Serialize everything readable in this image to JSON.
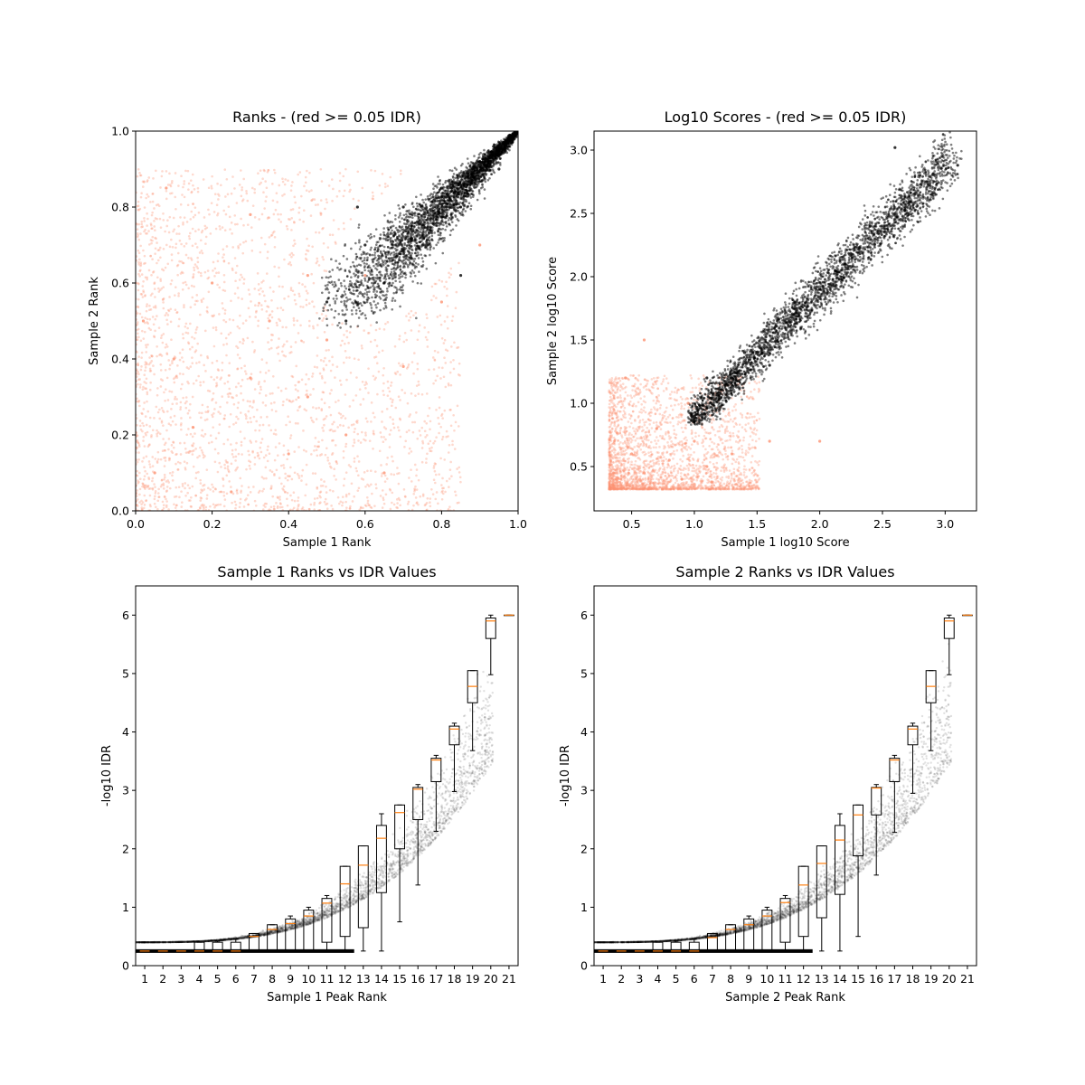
{
  "chart_data": [
    {
      "id": "ranks",
      "type": "scatter",
      "title": "Ranks - (red >= 0.05 IDR)",
      "xlabel": "Sample 1 Rank",
      "ylabel": "Sample 2 Rank",
      "xlim": [
        0.0,
        1.0
      ],
      "ylim": [
        0.0,
        1.0
      ],
      "xticks": [
        0.0,
        0.2,
        0.4,
        0.6,
        0.8,
        1.0
      ],
      "yticks": [
        0.0,
        0.2,
        0.4,
        0.6,
        0.8,
        1.0
      ],
      "xtick_labels": [
        "0.0",
        "0.2",
        "0.4",
        "0.6",
        "0.8",
        "1.0"
      ],
      "ytick_labels": [
        "0.0",
        "0.2",
        "0.4",
        "0.6",
        "0.8",
        "1.0"
      ],
      "series": [
        {
          "color": "#fc9272",
          "points": [
            [
              0.05,
              0.1
            ],
            [
              0.1,
              0.4
            ],
            [
              0.15,
              0.22
            ],
            [
              0.2,
              0.6
            ],
            [
              0.25,
              0.05
            ],
            [
              0.3,
              0.35
            ],
            [
              0.35,
              0.5
            ],
            [
              0.4,
              0.15
            ],
            [
              0.45,
              0.3
            ],
            [
              0.5,
              0.45
            ],
            [
              0.55,
              0.2
            ],
            [
              0.6,
              0.62
            ],
            [
              0.65,
              0.1
            ],
            [
              0.7,
              0.38
            ],
            [
              0.8,
              0.55
            ],
            [
              0.9,
              0.7
            ],
            [
              0.08,
              0.85
            ],
            [
              0.3,
              0.78
            ],
            [
              0.45,
              0.62
            ],
            [
              0.02,
              0.5
            ]
          ]
        },
        {
          "color": "#000000",
          "points": [
            [
              0.5,
              0.55
            ],
            [
              0.55,
              0.5
            ],
            [
              0.6,
              0.7
            ],
            [
              0.65,
              0.6
            ],
            [
              0.7,
              0.8
            ],
            [
              0.75,
              0.7
            ],
            [
              0.8,
              0.85
            ],
            [
              0.85,
              0.8
            ],
            [
              0.9,
              0.92
            ],
            [
              0.95,
              0.9
            ],
            [
              0.97,
              0.97
            ],
            [
              1.0,
              1.0
            ],
            [
              0.58,
              0.8
            ],
            [
              0.85,
              0.62
            ]
          ]
        }
      ]
    },
    {
      "id": "scores",
      "type": "scatter",
      "title": "Log10 Scores - (red >= 0.05 IDR)",
      "xlabel": "Sample 1 log10 Score",
      "ylabel": "Sample 2 log10 Score",
      "xlim": [
        0.2,
        3.25
      ],
      "ylim": [
        0.15,
        3.15
      ],
      "xticks": [
        0.5,
        1.0,
        1.5,
        2.0,
        2.5,
        3.0
      ],
      "yticks": [
        0.5,
        1.0,
        1.5,
        2.0,
        2.5,
        3.0
      ],
      "xtick_labels": [
        "0.5",
        "1.0",
        "1.5",
        "2.0",
        "2.5",
        "3.0"
      ],
      "ytick_labels": [
        "0.5",
        "1.0",
        "1.5",
        "2.0",
        "2.5",
        "3.0"
      ],
      "series": [
        {
          "color": "#fc9272",
          "points": [
            [
              0.35,
              0.35
            ],
            [
              0.5,
              0.6
            ],
            [
              0.6,
              0.45
            ],
            [
              0.7,
              0.8
            ],
            [
              0.8,
              0.55
            ],
            [
              0.9,
              0.4
            ],
            [
              1.0,
              0.7
            ],
            [
              1.1,
              0.5
            ],
            [
              1.3,
              0.6
            ],
            [
              1.6,
              0.7
            ],
            [
              0.45,
              1.2
            ],
            [
              0.6,
              1.5
            ],
            [
              0.95,
              1.0
            ],
            [
              2.0,
              0.7
            ]
          ]
        },
        {
          "color": "#000000",
          "points": [
            [
              1.0,
              0.85
            ],
            [
              1.1,
              1.2
            ],
            [
              1.2,
              0.95
            ],
            [
              1.4,
              1.4
            ],
            [
              1.6,
              1.3
            ],
            [
              1.8,
              1.8
            ],
            [
              2.0,
              1.9
            ],
            [
              2.2,
              2.1
            ],
            [
              2.4,
              2.4
            ],
            [
              2.6,
              2.5
            ],
            [
              2.8,
              2.8
            ],
            [
              3.1,
              2.88
            ],
            [
              2.6,
              3.02
            ]
          ]
        }
      ]
    },
    {
      "id": "s1idr",
      "type": "box",
      "title": "Sample 1 Ranks vs IDR Values",
      "xlabel": "Sample 1 Peak Rank",
      "ylabel": "-log10 IDR",
      "xlim": [
        0.0,
        21.0
      ],
      "ylim": [
        0.0,
        6.5
      ],
      "xtick_labels": [
        "1",
        "2",
        "3",
        "4",
        "5",
        "6",
        "7",
        "8",
        "9",
        "10",
        "11",
        "12",
        "13",
        "14",
        "15",
        "16",
        "17",
        "18",
        "19",
        "20",
        "21"
      ],
      "ytick_labels": [
        "0",
        "1",
        "2",
        "3",
        "4",
        "5",
        "6"
      ],
      "boxes": [
        {
          "pos": 1,
          "q1": 0.25,
          "median": 0.25,
          "q3": 0.25,
          "whislo": 0.25,
          "whishi": 0.25
        },
        {
          "pos": 2,
          "q1": 0.25,
          "median": 0.25,
          "q3": 0.25,
          "whislo": 0.25,
          "whishi": 0.25
        },
        {
          "pos": 3,
          "q1": 0.25,
          "median": 0.25,
          "q3": 0.25,
          "whislo": 0.25,
          "whishi": 0.25
        },
        {
          "pos": 4,
          "q1": 0.25,
          "median": 0.25,
          "q3": 0.4,
          "whislo": 0.25,
          "whishi": 0.4
        },
        {
          "pos": 5,
          "q1": 0.25,
          "median": 0.25,
          "q3": 0.4,
          "whislo": 0.25,
          "whishi": 0.42
        },
        {
          "pos": 6,
          "q1": 0.25,
          "median": 0.25,
          "q3": 0.4,
          "whislo": 0.25,
          "whishi": 0.45
        },
        {
          "pos": 7,
          "q1": 0.25,
          "median": 0.5,
          "q3": 0.55,
          "whislo": 0.25,
          "whishi": 0.55
        },
        {
          "pos": 8,
          "q1": 0.25,
          "median": 0.62,
          "q3": 0.7,
          "whislo": 0.25,
          "whishi": 0.7
        },
        {
          "pos": 9,
          "q1": 0.25,
          "median": 0.72,
          "q3": 0.8,
          "whislo": 0.25,
          "whishi": 0.85
        },
        {
          "pos": 10,
          "q1": 0.25,
          "median": 0.85,
          "q3": 0.95,
          "whislo": 0.25,
          "whishi": 1.0
        },
        {
          "pos": 11,
          "q1": 0.4,
          "median": 1.07,
          "q3": 1.15,
          "whislo": 0.25,
          "whishi": 1.2
        },
        {
          "pos": 12,
          "q1": 0.5,
          "median": 1.4,
          "q3": 1.7,
          "whislo": 0.25,
          "whishi": 1.7
        },
        {
          "pos": 13,
          "q1": 0.65,
          "median": 1.72,
          "q3": 2.05,
          "whislo": 0.25,
          "whishi": 2.05
        },
        {
          "pos": 14,
          "q1": 1.25,
          "median": 2.18,
          "q3": 2.4,
          "whislo": 0.25,
          "whishi": 2.6
        },
        {
          "pos": 15,
          "q1": 2.0,
          "median": 2.62,
          "q3": 2.75,
          "whislo": 0.75,
          "whishi": 2.75
        },
        {
          "pos": 16,
          "q1": 2.5,
          "median": 3.02,
          "q3": 3.05,
          "whislo": 1.38,
          "whishi": 3.1
        },
        {
          "pos": 17,
          "q1": 3.15,
          "median": 3.52,
          "q3": 3.55,
          "whislo": 2.3,
          "whishi": 3.6
        },
        {
          "pos": 18,
          "q1": 3.78,
          "median": 4.05,
          "q3": 4.1,
          "whislo": 2.98,
          "whishi": 4.15
        },
        {
          "pos": 19,
          "q1": 4.5,
          "median": 4.78,
          "q3": 5.05,
          "whislo": 3.68,
          "whishi": 5.05
        },
        {
          "pos": 20,
          "q1": 5.6,
          "median": 5.9,
          "q3": 5.95,
          "whislo": 4.98,
          "whishi": 6.0
        },
        {
          "pos": 21,
          "q1": 6.0,
          "median": 6.0,
          "q3": 6.0,
          "whislo": 6.0,
          "whishi": 6.0
        }
      ]
    },
    {
      "id": "s2idr",
      "type": "box",
      "title": "Sample 2 Ranks vs IDR Values",
      "xlabel": "Sample 2 Peak Rank",
      "ylabel": "-log10 IDR",
      "xlim": [
        0.0,
        21.0
      ],
      "ylim": [
        0.0,
        6.5
      ],
      "xtick_labels": [
        "1",
        "2",
        "3",
        "4",
        "5",
        "6",
        "7",
        "8",
        "9",
        "10",
        "11",
        "12",
        "13",
        "14",
        "15",
        "16",
        "17",
        "18",
        "19",
        "20",
        "21"
      ],
      "ytick_labels": [
        "0",
        "1",
        "2",
        "3",
        "4",
        "5",
        "6"
      ],
      "boxes": [
        {
          "pos": 1,
          "q1": 0.25,
          "median": 0.25,
          "q3": 0.25,
          "whislo": 0.25,
          "whishi": 0.25
        },
        {
          "pos": 2,
          "q1": 0.25,
          "median": 0.25,
          "q3": 0.25,
          "whislo": 0.25,
          "whishi": 0.25
        },
        {
          "pos": 3,
          "q1": 0.25,
          "median": 0.25,
          "q3": 0.25,
          "whislo": 0.25,
          "whishi": 0.25
        },
        {
          "pos": 4,
          "q1": 0.25,
          "median": 0.25,
          "q3": 0.4,
          "whislo": 0.25,
          "whishi": 0.4
        },
        {
          "pos": 5,
          "q1": 0.25,
          "median": 0.25,
          "q3": 0.4,
          "whislo": 0.25,
          "whishi": 0.42
        },
        {
          "pos": 6,
          "q1": 0.25,
          "median": 0.25,
          "q3": 0.4,
          "whislo": 0.25,
          "whishi": 0.45
        },
        {
          "pos": 7,
          "q1": 0.25,
          "median": 0.48,
          "q3": 0.55,
          "whislo": 0.25,
          "whishi": 0.55
        },
        {
          "pos": 8,
          "q1": 0.25,
          "median": 0.62,
          "q3": 0.7,
          "whislo": 0.25,
          "whishi": 0.7
        },
        {
          "pos": 9,
          "q1": 0.25,
          "median": 0.7,
          "q3": 0.8,
          "whislo": 0.25,
          "whishi": 0.85
        },
        {
          "pos": 10,
          "q1": 0.25,
          "median": 0.85,
          "q3": 0.95,
          "whislo": 0.25,
          "whishi": 1.0
        },
        {
          "pos": 11,
          "q1": 0.4,
          "median": 1.08,
          "q3": 1.15,
          "whislo": 0.25,
          "whishi": 1.2
        },
        {
          "pos": 12,
          "q1": 0.5,
          "median": 1.38,
          "q3": 1.7,
          "whislo": 0.25,
          "whishi": 1.7
        },
        {
          "pos": 13,
          "q1": 0.82,
          "median": 1.75,
          "q3": 2.05,
          "whislo": 0.25,
          "whishi": 2.05
        },
        {
          "pos": 14,
          "q1": 1.22,
          "median": 2.15,
          "q3": 2.4,
          "whislo": 0.25,
          "whishi": 2.6
        },
        {
          "pos": 15,
          "q1": 1.88,
          "median": 2.58,
          "q3": 2.75,
          "whislo": 0.5,
          "whishi": 2.75
        },
        {
          "pos": 16,
          "q1": 2.58,
          "median": 3.04,
          "q3": 3.05,
          "whislo": 1.55,
          "whishi": 3.1
        },
        {
          "pos": 17,
          "q1": 3.15,
          "median": 3.52,
          "q3": 3.55,
          "whislo": 2.28,
          "whishi": 3.6
        },
        {
          "pos": 18,
          "q1": 3.78,
          "median": 4.05,
          "q3": 4.1,
          "whislo": 2.95,
          "whishi": 4.15
        },
        {
          "pos": 19,
          "q1": 4.5,
          "median": 4.78,
          "q3": 5.05,
          "whislo": 3.68,
          "whishi": 5.05
        },
        {
          "pos": 20,
          "q1": 5.6,
          "median": 5.9,
          "q3": 5.95,
          "whislo": 4.98,
          "whishi": 6.0
        },
        {
          "pos": 21,
          "q1": 6.0,
          "median": 6.0,
          "q3": 6.0,
          "whislo": 6.0,
          "whishi": 6.0
        }
      ]
    }
  ]
}
